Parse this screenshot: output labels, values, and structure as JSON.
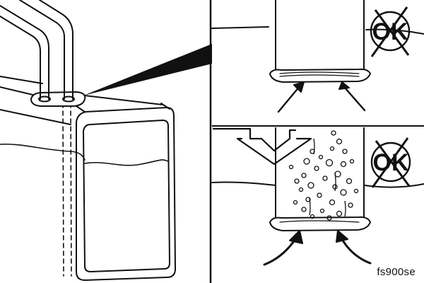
{
  "figure": {
    "reference_code": "fs900se",
    "status_marks": [
      {
        "text": "OK",
        "crossed_out": true
      },
      {
        "text": "OK",
        "crossed_out": true
      }
    ],
    "colors": {
      "ink": "#111111",
      "background": "#ffffff"
    }
  }
}
